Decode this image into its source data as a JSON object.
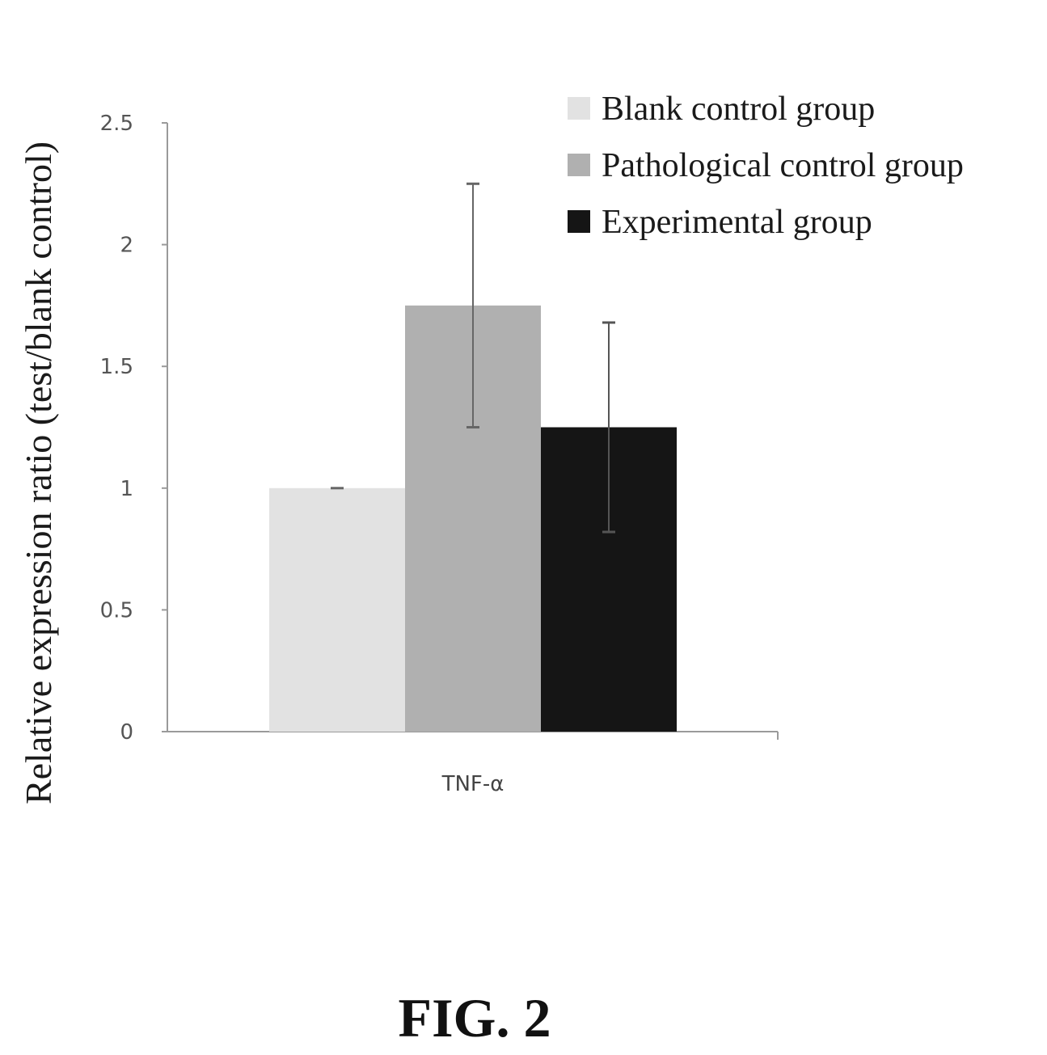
{
  "chart_data": {
    "type": "bar",
    "categories": [
      "TNF-α"
    ],
    "series": [
      {
        "name": "Blank control group",
        "values": [
          1.0
        ],
        "error": [
          0.0
        ],
        "color": "#e2e2e2"
      },
      {
        "name": "Pathological control group",
        "values": [
          1.75
        ],
        "error": [
          0.5
        ],
        "color": "#b0b0b0"
      },
      {
        "name": "Experimental group",
        "values": [
          1.25
        ],
        "error": [
          0.43
        ],
        "color": "#151515"
      }
    ],
    "ylabel": "Relative expression ratio (test/blank control)",
    "xlabel": "",
    "ylim": [
      0,
      2.5
    ],
    "yticks": [
      "0",
      "0.5",
      "1",
      "1.5",
      "2",
      "2.5"
    ],
    "legend_position": "top-right",
    "grid": false
  },
  "figure_caption": "FIG. 2"
}
